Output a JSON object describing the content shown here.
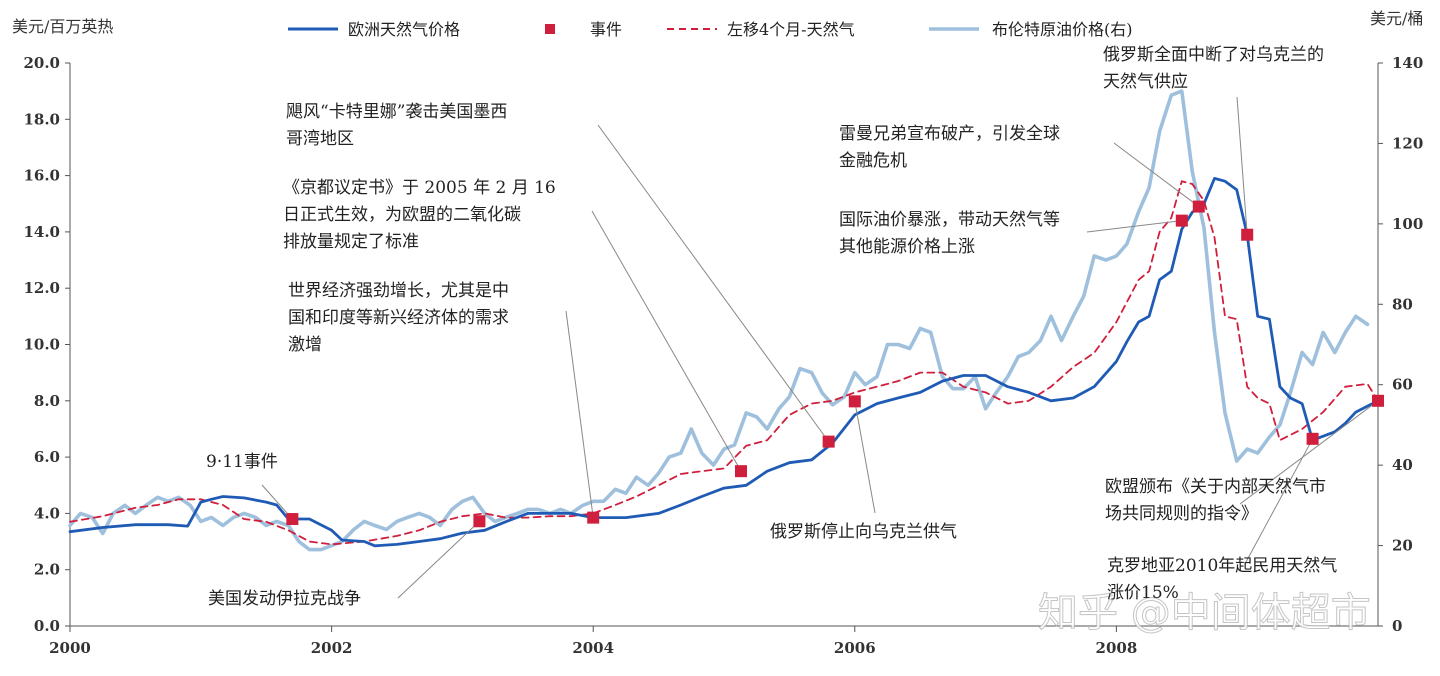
{
  "watermark": "知乎 @中间体超市",
  "chart_data": {
    "type": "line",
    "left_unit": "美元/百万英热",
    "right_unit": "美元/桶",
    "x_range": [
      2000.0,
      2010.0
    ],
    "x_ticks": [
      "2000",
      "2002",
      "2004",
      "2006",
      "2008"
    ],
    "y_left_range": [
      0,
      20
    ],
    "y_left_ticks": [
      "0.0",
      "2.0",
      "4.0",
      "6.0",
      "8.0",
      "10.0",
      "12.0",
      "14.0",
      "16.0",
      "18.0",
      "20.0"
    ],
    "y_right_range": [
      0,
      140
    ],
    "y_right_ticks": [
      "0",
      "20",
      "40",
      "60",
      "80",
      "100",
      "120",
      "140"
    ],
    "grid": "none",
    "legend_position": "top",
    "colors": {
      "gas": "#1f5bb5",
      "events": "#d01f3c",
      "shifted": "#d01f3c",
      "brent": "#9fc0dd",
      "leader": "#888888"
    },
    "series": [
      {
        "key": "gas",
        "name": "欧洲天然气价格",
        "axis": "left",
        "style": "solid",
        "points": [
          [
            2000.0,
            3.35
          ],
          [
            2000.25,
            3.5
          ],
          [
            2000.5,
            3.6
          ],
          [
            2000.75,
            3.6
          ],
          [
            2000.9,
            3.55
          ],
          [
            2001.0,
            4.4
          ],
          [
            2001.08,
            4.5
          ],
          [
            2001.17,
            4.6
          ],
          [
            2001.33,
            4.55
          ],
          [
            2001.5,
            4.4
          ],
          [
            2001.58,
            4.3
          ],
          [
            2001.67,
            3.8
          ],
          [
            2001.83,
            3.8
          ],
          [
            2002.0,
            3.4
          ],
          [
            2002.08,
            3.05
          ],
          [
            2002.25,
            3.0
          ],
          [
            2002.33,
            2.85
          ],
          [
            2002.5,
            2.9
          ],
          [
            2002.67,
            3.0
          ],
          [
            2002.83,
            3.1
          ],
          [
            2003.0,
            3.3
          ],
          [
            2003.17,
            3.4
          ],
          [
            2003.33,
            3.7
          ],
          [
            2003.5,
            4.0
          ],
          [
            2003.67,
            4.0
          ],
          [
            2003.83,
            4.0
          ],
          [
            2004.0,
            3.85
          ],
          [
            2004.25,
            3.85
          ],
          [
            2004.5,
            4.0
          ],
          [
            2004.67,
            4.3
          ],
          [
            2004.83,
            4.6
          ],
          [
            2005.0,
            4.9
          ],
          [
            2005.17,
            5.0
          ],
          [
            2005.33,
            5.5
          ],
          [
            2005.5,
            5.8
          ],
          [
            2005.67,
            5.9
          ],
          [
            2005.83,
            6.5
          ],
          [
            2006.0,
            7.5
          ],
          [
            2006.17,
            7.9
          ],
          [
            2006.33,
            8.1
          ],
          [
            2006.5,
            8.3
          ],
          [
            2006.67,
            8.7
          ],
          [
            2006.83,
            8.9
          ],
          [
            2007.0,
            8.9
          ],
          [
            2007.17,
            8.5
          ],
          [
            2007.33,
            8.3
          ],
          [
            2007.5,
            8.0
          ],
          [
            2007.67,
            8.1
          ],
          [
            2007.83,
            8.5
          ],
          [
            2008.0,
            9.4
          ],
          [
            2008.08,
            10.1
          ],
          [
            2008.17,
            10.8
          ],
          [
            2008.25,
            11.0
          ],
          [
            2008.33,
            12.3
          ],
          [
            2008.42,
            12.6
          ],
          [
            2008.5,
            14.1
          ],
          [
            2008.58,
            14.7
          ],
          [
            2008.67,
            15.0
          ],
          [
            2008.75,
            15.9
          ],
          [
            2008.83,
            15.8
          ],
          [
            2008.92,
            15.5
          ],
          [
            2009.0,
            13.9
          ],
          [
            2009.08,
            11.0
          ],
          [
            2009.17,
            10.9
          ],
          [
            2009.25,
            8.5
          ],
          [
            2009.33,
            8.1
          ],
          [
            2009.42,
            7.9
          ],
          [
            2009.5,
            6.6
          ],
          [
            2009.67,
            6.9
          ],
          [
            2009.75,
            7.2
          ],
          [
            2009.83,
            7.6
          ],
          [
            2010.0,
            8.0
          ]
        ]
      },
      {
        "key": "shifted",
        "name": "左移4个月-天然气",
        "axis": "left",
        "style": "dashed",
        "points": [
          [
            2000.0,
            3.7
          ],
          [
            2000.25,
            3.9
          ],
          [
            2000.5,
            4.2
          ],
          [
            2000.67,
            4.3
          ],
          [
            2000.83,
            4.5
          ],
          [
            2001.0,
            4.5
          ],
          [
            2001.17,
            4.3
          ],
          [
            2001.33,
            3.8
          ],
          [
            2001.5,
            3.7
          ],
          [
            2001.67,
            3.4
          ],
          [
            2001.83,
            3.0
          ],
          [
            2002.0,
            2.9
          ],
          [
            2002.25,
            3.0
          ],
          [
            2002.5,
            3.2
          ],
          [
            2002.67,
            3.4
          ],
          [
            2002.83,
            3.7
          ],
          [
            2003.0,
            3.9
          ],
          [
            2003.17,
            4.0
          ],
          [
            2003.33,
            3.85
          ],
          [
            2003.5,
            3.85
          ],
          [
            2003.67,
            3.9
          ],
          [
            2003.83,
            3.9
          ],
          [
            2004.0,
            4.0
          ],
          [
            2004.17,
            4.3
          ],
          [
            2004.33,
            4.6
          ],
          [
            2004.5,
            5.0
          ],
          [
            2004.67,
            5.4
          ],
          [
            2004.83,
            5.5
          ],
          [
            2005.0,
            5.6
          ],
          [
            2005.17,
            6.4
          ],
          [
            2005.33,
            6.6
          ],
          [
            2005.5,
            7.5
          ],
          [
            2005.67,
            7.9
          ],
          [
            2005.83,
            8.0
          ],
          [
            2006.0,
            8.3
          ],
          [
            2006.17,
            8.5
          ],
          [
            2006.33,
            8.7
          ],
          [
            2006.5,
            9.0
          ],
          [
            2006.67,
            9.0
          ],
          [
            2006.83,
            8.5
          ],
          [
            2007.0,
            8.3
          ],
          [
            2007.17,
            7.9
          ],
          [
            2007.33,
            8.0
          ],
          [
            2007.5,
            8.5
          ],
          [
            2007.67,
            9.2
          ],
          [
            2007.83,
            9.7
          ],
          [
            2008.0,
            10.8
          ],
          [
            2008.17,
            12.3
          ],
          [
            2008.25,
            12.6
          ],
          [
            2008.33,
            14.0
          ],
          [
            2008.42,
            14.5
          ],
          [
            2008.5,
            15.8
          ],
          [
            2008.58,
            15.7
          ],
          [
            2008.67,
            15.1
          ],
          [
            2008.75,
            13.8
          ],
          [
            2008.83,
            11.0
          ],
          [
            2008.92,
            10.9
          ],
          [
            2009.0,
            8.5
          ],
          [
            2009.08,
            8.1
          ],
          [
            2009.17,
            7.9
          ],
          [
            2009.25,
            6.6
          ],
          [
            2009.42,
            7.0
          ],
          [
            2009.58,
            7.6
          ],
          [
            2009.75,
            8.5
          ],
          [
            2009.92,
            8.6
          ],
          [
            2010.0,
            8.0
          ]
        ]
      },
      {
        "key": "brent",
        "name": "布伦特原油价格(右)",
        "axis": "right",
        "style": "solid",
        "points": [
          [
            2000.0,
            25
          ],
          [
            2000.08,
            28
          ],
          [
            2000.17,
            27
          ],
          [
            2000.25,
            23
          ],
          [
            2000.33,
            28
          ],
          [
            2000.42,
            30
          ],
          [
            2000.5,
            28
          ],
          [
            2000.58,
            30
          ],
          [
            2000.67,
            32
          ],
          [
            2000.75,
            31
          ],
          [
            2000.83,
            32
          ],
          [
            2000.92,
            30
          ],
          [
            2001.0,
            26
          ],
          [
            2001.08,
            27
          ],
          [
            2001.17,
            25
          ],
          [
            2001.25,
            27
          ],
          [
            2001.33,
            28
          ],
          [
            2001.42,
            27
          ],
          [
            2001.5,
            25
          ],
          [
            2001.58,
            26
          ],
          [
            2001.67,
            25
          ],
          [
            2001.75,
            21
          ],
          [
            2001.83,
            19
          ],
          [
            2001.92,
            19
          ],
          [
            2002.0,
            20
          ],
          [
            2002.08,
            21
          ],
          [
            2002.17,
            24
          ],
          [
            2002.25,
            26
          ],
          [
            2002.33,
            25
          ],
          [
            2002.42,
            24
          ],
          [
            2002.5,
            26
          ],
          [
            2002.58,
            27
          ],
          [
            2002.67,
            28
          ],
          [
            2002.75,
            27
          ],
          [
            2002.83,
            25
          ],
          [
            2002.92,
            29
          ],
          [
            2003.0,
            31
          ],
          [
            2003.08,
            32
          ],
          [
            2003.17,
            28
          ],
          [
            2003.25,
            26
          ],
          [
            2003.33,
            27
          ],
          [
            2003.42,
            28
          ],
          [
            2003.5,
            29
          ],
          [
            2003.58,
            29
          ],
          [
            2003.67,
            28
          ],
          [
            2003.75,
            29
          ],
          [
            2003.83,
            28
          ],
          [
            2003.92,
            30
          ],
          [
            2004.0,
            31
          ],
          [
            2004.08,
            31
          ],
          [
            2004.17,
            34
          ],
          [
            2004.25,
            33
          ],
          [
            2004.33,
            37
          ],
          [
            2004.42,
            35
          ],
          [
            2004.5,
            38
          ],
          [
            2004.58,
            42
          ],
          [
            2004.67,
            43
          ],
          [
            2004.75,
            49
          ],
          [
            2004.83,
            43
          ],
          [
            2004.92,
            40
          ],
          [
            2005.0,
            44
          ],
          [
            2005.08,
            45
          ],
          [
            2005.17,
            53
          ],
          [
            2005.25,
            52
          ],
          [
            2005.33,
            49
          ],
          [
            2005.42,
            54
          ],
          [
            2005.5,
            57
          ],
          [
            2005.58,
            64
          ],
          [
            2005.67,
            63
          ],
          [
            2005.75,
            58
          ],
          [
            2005.83,
            55
          ],
          [
            2005.92,
            57
          ],
          [
            2006.0,
            63
          ],
          [
            2006.08,
            60
          ],
          [
            2006.17,
            62
          ],
          [
            2006.25,
            70
          ],
          [
            2006.33,
            70
          ],
          [
            2006.42,
            69
          ],
          [
            2006.5,
            74
          ],
          [
            2006.58,
            73
          ],
          [
            2006.67,
            62
          ],
          [
            2006.75,
            59
          ],
          [
            2006.83,
            59
          ],
          [
            2006.92,
            62
          ],
          [
            2007.0,
            54
          ],
          [
            2007.08,
            58
          ],
          [
            2007.17,
            62
          ],
          [
            2007.25,
            67
          ],
          [
            2007.33,
            68
          ],
          [
            2007.42,
            71
          ],
          [
            2007.5,
            77
          ],
          [
            2007.58,
            71
          ],
          [
            2007.67,
            77
          ],
          [
            2007.75,
            82
          ],
          [
            2007.83,
            92
          ],
          [
            2007.92,
            91
          ],
          [
            2008.0,
            92
          ],
          [
            2008.08,
            95
          ],
          [
            2008.17,
            103
          ],
          [
            2008.25,
            109
          ],
          [
            2008.33,
            123
          ],
          [
            2008.42,
            132
          ],
          [
            2008.5,
            133
          ],
          [
            2008.58,
            113
          ],
          [
            2008.67,
            99
          ],
          [
            2008.75,
            73
          ],
          [
            2008.83,
            53
          ],
          [
            2008.92,
            41
          ],
          [
            2009.0,
            44
          ],
          [
            2009.08,
            43
          ],
          [
            2009.17,
            47
          ],
          [
            2009.25,
            50
          ],
          [
            2009.33,
            58
          ],
          [
            2009.42,
            68
          ],
          [
            2009.5,
            65
          ],
          [
            2009.58,
            73
          ],
          [
            2009.67,
            68
          ],
          [
            2009.75,
            73
          ],
          [
            2009.83,
            77
          ],
          [
            2009.92,
            75
          ]
        ]
      }
    ],
    "events": {
      "name": "事件",
      "points": [
        [
          2001.7,
          3.8
        ],
        [
          2003.13,
          3.72
        ],
        [
          2004.0,
          3.85
        ],
        [
          2005.13,
          5.5
        ],
        [
          2005.8,
          6.55
        ],
        [
          2006.0,
          7.98
        ],
        [
          2008.5,
          14.4
        ],
        [
          2008.63,
          14.9
        ],
        [
          2009.0,
          13.9
        ],
        [
          2009.5,
          6.65
        ],
        [
          2010.0,
          8.0
        ]
      ]
    },
    "annotations": [
      {
        "lines": [
          "9·11事件"
        ],
        "x": 2001.7,
        "y": 3.8
      },
      {
        "lines": [
          "美国发动伊拉克战争"
        ],
        "x": 2003.13,
        "y": 3.72
      },
      {
        "lines": [
          "世界经济强劲增长，尤其是中",
          "国和印度等新兴经济体的需求",
          "激增"
        ],
        "x": 2004.0,
        "y": 3.85
      },
      {
        "lines": [
          "《京都议定书》于 2005 年 2 月 16",
          "日正式生效，为欧盟的二氧化碳",
          "排放量规定了标准"
        ],
        "x": 2005.13,
        "y": 5.5
      },
      {
        "lines": [
          "飓风“卡特里娜”袭击美国墨西",
          "哥湾地区"
        ],
        "x": 2005.8,
        "y": 6.55
      },
      {
        "lines": [
          "俄罗斯停止向乌克兰供气"
        ],
        "x": 2006.0,
        "y": 7.98
      },
      {
        "lines": [
          "国际油价暴涨，带动天然气等",
          "其他能源价格上涨"
        ],
        "x": 2008.5,
        "y": 14.4
      },
      {
        "lines": [
          "雷曼兄弟宣布破产，引发全球",
          "金融危机"
        ],
        "x": 2008.63,
        "y": 14.9
      },
      {
        "lines": [
          "俄罗斯全面中断了对乌克兰的",
          "天然气供应"
        ],
        "x": 2009.0,
        "y": 13.9
      },
      {
        "lines": [
          "克罗地亚2010年起民用天然气",
          "涨价15%"
        ],
        "x": 2009.5,
        "y": 6.65
      },
      {
        "lines": [
          "欧盟颁布《关于内部天然气市",
          "场共同规则的指令》"
        ],
        "x": 2010.0,
        "y": 8.0
      }
    ]
  }
}
